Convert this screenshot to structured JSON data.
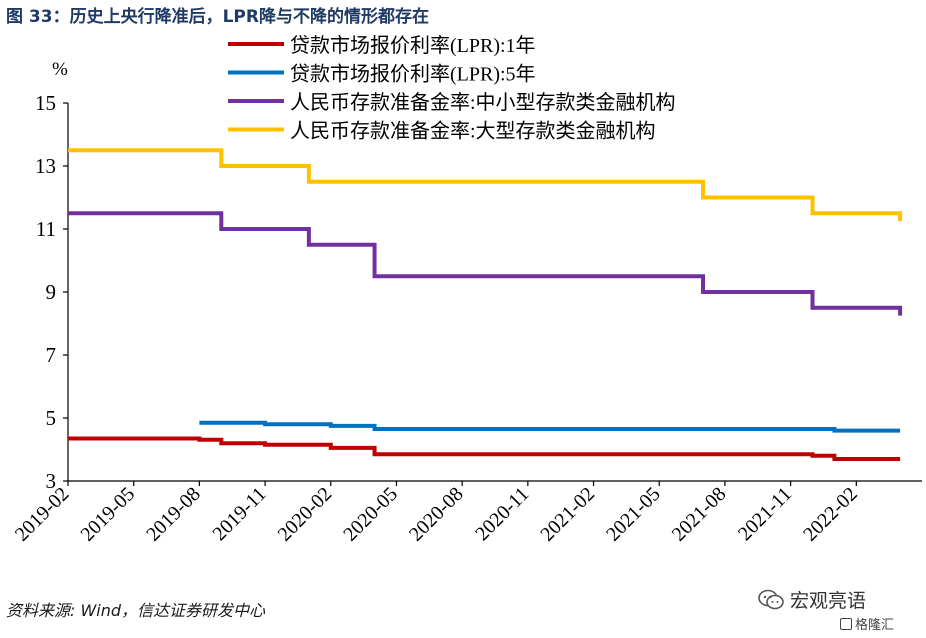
{
  "figure": {
    "title": "图 33：历史上央行降准后，LPR降与不降的情形都存在",
    "source": "资料来源: Wind，信达证券研发中心",
    "watermark": "宏观亮语",
    "watermark2": "格隆汇"
  },
  "chart_data": {
    "type": "line",
    "step": true,
    "unit_label": "%",
    "ylim": [
      3,
      15
    ],
    "yticks": [
      "3",
      "5",
      "7",
      "9",
      "11",
      "13",
      "15"
    ],
    "xlim": [
      "2019-02",
      "2022-05"
    ],
    "xticks": [
      "2019-02",
      "2019-05",
      "2019-08",
      "2019-11",
      "2020-02",
      "2020-05",
      "2020-08",
      "2020-11",
      "2021-02",
      "2021-05",
      "2021-08",
      "2021-11",
      "2022-02"
    ],
    "legend_position": "top",
    "series": [
      {
        "name": "贷款市场报价利率(LPR):1年",
        "color": "#c00000",
        "points": [
          [
            "2019-02",
            4.35
          ],
          [
            "2019-08",
            4.31
          ],
          [
            "2019-09",
            4.2
          ],
          [
            "2019-11",
            4.15
          ],
          [
            "2020-02",
            4.05
          ],
          [
            "2020-04",
            3.85
          ],
          [
            "2021-12",
            3.8
          ],
          [
            "2022-01",
            3.7
          ],
          [
            "2022-04",
            3.7
          ]
        ]
      },
      {
        "name": "贷款市场报价利率(LPR):5年",
        "color": "#0070c0",
        "points": [
          [
            "2019-08",
            4.85
          ],
          [
            "2019-11",
            4.8
          ],
          [
            "2020-02",
            4.75
          ],
          [
            "2020-04",
            4.65
          ],
          [
            "2022-01",
            4.6
          ],
          [
            "2022-04",
            4.6
          ]
        ]
      },
      {
        "name": "人民币存款准备金率:中小型存款类金融机构",
        "color": "#7030a0",
        "points": [
          [
            "2019-02",
            11.5
          ],
          [
            "2019-09",
            11.0
          ],
          [
            "2020-01",
            10.5
          ],
          [
            "2020-04",
            9.5
          ],
          [
            "2021-07",
            9.0
          ],
          [
            "2021-12",
            8.5
          ],
          [
            "2022-04",
            8.5
          ],
          [
            "2022-04",
            8.25
          ]
        ]
      },
      {
        "name": "人民币存款准备金率:大型存款类金融机构",
        "color": "#ffc000",
        "points": [
          [
            "2019-02",
            13.5
          ],
          [
            "2019-09",
            13.0
          ],
          [
            "2020-01",
            12.5
          ],
          [
            "2021-07",
            12.0
          ],
          [
            "2021-12",
            11.5
          ],
          [
            "2022-04",
            11.5
          ],
          [
            "2022-04",
            11.25
          ]
        ]
      }
    ]
  }
}
